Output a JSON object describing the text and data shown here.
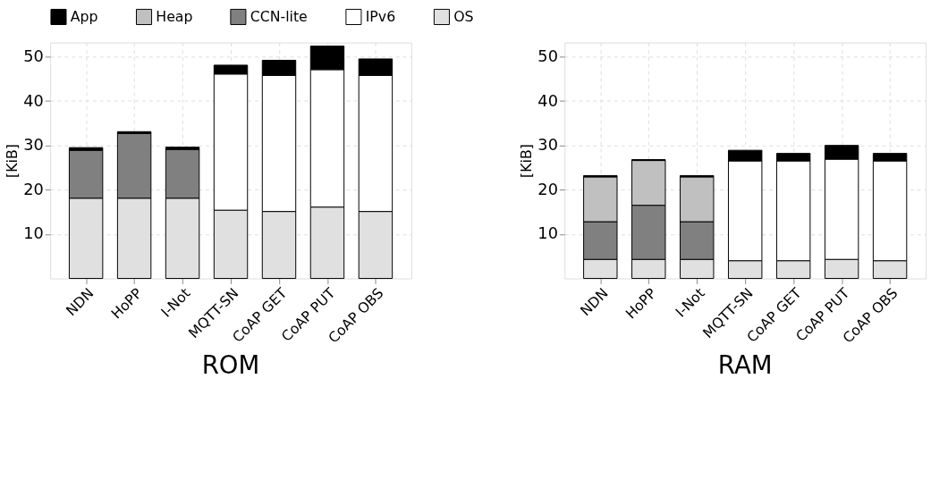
{
  "chart_data": [
    {
      "type": "bar",
      "stacked": true,
      "title": "ROM",
      "ylabel": "[KiB]",
      "categories": [
        "NDN",
        "HoPP",
        "I-Not",
        "MQTT-SN",
        "CoAP GET",
        "CoAP PUT",
        "CoAP OBS"
      ],
      "ylim": [
        0,
        53.2
      ],
      "yticks": [
        10,
        20,
        30,
        40,
        50
      ],
      "grid": true,
      "legend": "top",
      "series": [
        {
          "name": "OS",
          "color": "#e0e0e0",
          "values": [
            18.1,
            18.1,
            18.1,
            15.4,
            15.1,
            16.1,
            15.1
          ]
        },
        {
          "name": "IPv6",
          "color": "#ffffff",
          "values": [
            null,
            null,
            null,
            30.7,
            30.7,
            31.0,
            30.7
          ]
        },
        {
          "name": "CCN-lite",
          "color": "#808080",
          "values": [
            10.8,
            14.6,
            11.0,
            null,
            null,
            null,
            null
          ]
        },
        {
          "name": "Heap",
          "color": "#c0c0c0",
          "values": [
            null,
            null,
            null,
            null,
            null,
            null,
            null
          ]
        },
        {
          "name": "App",
          "color": "#000000",
          "values": [
            0.6,
            0.4,
            0.5,
            2.0,
            3.4,
            5.3,
            3.7
          ]
        }
      ]
    },
    {
      "type": "bar",
      "stacked": true,
      "title": "RAM",
      "ylabel": "[KiB]",
      "categories": [
        "NDN",
        "HoPP",
        "I-Not",
        "MQTT-SN",
        "CoAP GET",
        "CoAP PUT",
        "CoAP OBS"
      ],
      "ylim": [
        0,
        53.2
      ],
      "yticks": [
        10,
        20,
        30,
        40,
        50
      ],
      "grid": true,
      "legend": false,
      "series": [
        {
          "color": "#e0e0e0",
          "values": [
            4.3,
            4.3,
            4.3,
            4.0,
            4.0,
            4.3,
            4.0
          ]
        },
        {
          "color": "#ffffff",
          "values": [
            null,
            null,
            null,
            22.5,
            22.5,
            22.6,
            22.5
          ]
        },
        {
          "color": "#808080",
          "values": [
            8.5,
            12.2,
            8.5,
            null,
            null,
            null,
            null
          ]
        },
        {
          "color": "#c0c0c0",
          "values": [
            10.1,
            10.1,
            10.1,
            null,
            null,
            null,
            null
          ]
        },
        {
          "color": "#000000",
          "values": [
            0.3,
            0.2,
            0.3,
            2.4,
            1.7,
            3.1,
            1.7
          ]
        }
      ]
    }
  ]
}
